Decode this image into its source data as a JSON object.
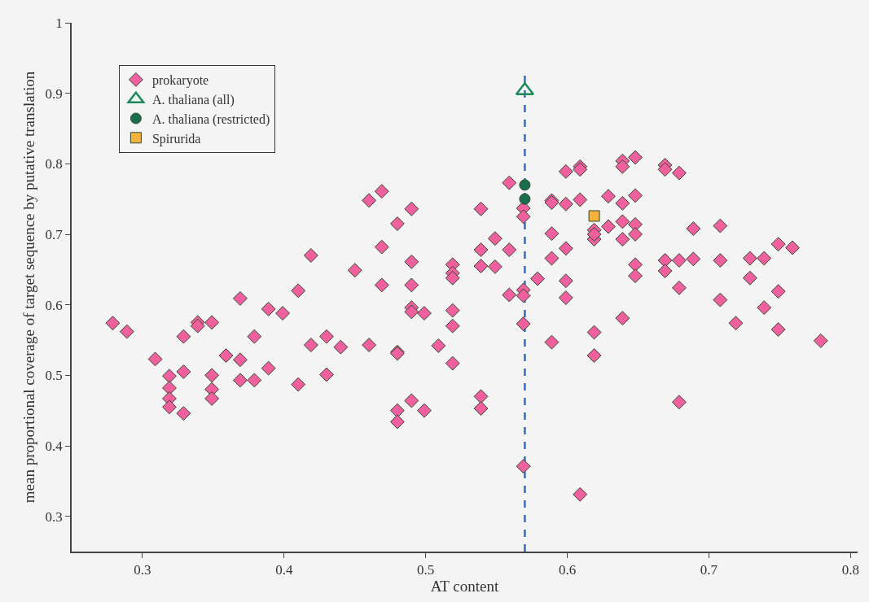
{
  "chart_data": {
    "type": "scatter",
    "xlabel": "AT content",
    "ylabel": "mean proportional coverage of target sequence by putative translation",
    "xlim": [
      0.25,
      0.805
    ],
    "ylim": [
      0.25,
      1.0
    ],
    "xticks": [
      0.3,
      0.4,
      0.5,
      0.6,
      0.7,
      0.8
    ],
    "yticks": [
      0.3,
      0.4,
      0.5,
      0.6,
      0.7,
      0.8,
      0.9,
      1
    ],
    "grid": false,
    "legend": "top left",
    "ref_lines": [
      {
        "axis": "x",
        "value": 0.57,
        "color": "#2e6fc4",
        "line_style": "dashed"
      }
    ],
    "series": [
      {
        "name": "prokaryote",
        "color": "#f0609e",
        "marker": "diamond",
        "x": [
          0.279,
          0.289,
          0.309,
          0.319,
          0.319,
          0.319,
          0.319,
          0.329,
          0.329,
          0.329,
          0.339,
          0.339,
          0.349,
          0.349,
          0.349,
          0.349,
          0.359,
          0.369,
          0.369,
          0.369,
          0.379,
          0.379,
          0.389,
          0.389,
          0.399,
          0.41,
          0.41,
          0.419,
          0.419,
          0.43,
          0.43,
          0.44,
          0.45,
          0.46,
          0.46,
          0.469,
          0.469,
          0.469,
          0.48,
          0.48,
          0.48,
          0.48,
          0.48,
          0.49,
          0.49,
          0.49,
          0.49,
          0.49,
          0.49,
          0.499,
          0.499,
          0.509,
          0.519,
          0.519,
          0.519,
          0.519,
          0.519,
          0.519,
          0.539,
          0.539,
          0.539,
          0.539,
          0.539,
          0.549,
          0.549,
          0.559,
          0.559,
          0.559,
          0.569,
          0.569,
          0.569,
          0.569,
          0.569,
          0.569,
          0.579,
          0.589,
          0.589,
          0.589,
          0.589,
          0.589,
          0.599,
          0.599,
          0.599,
          0.599,
          0.599,
          0.609,
          0.609,
          0.609,
          0.609,
          0.619,
          0.619,
          0.619,
          0.619,
          0.619,
          0.629,
          0.629,
          0.639,
          0.639,
          0.639,
          0.639,
          0.639,
          0.639,
          0.648,
          0.648,
          0.648,
          0.648,
          0.648,
          0.648,
          0.669,
          0.669,
          0.669,
          0.669,
          0.679,
          0.679,
          0.679,
          0.679,
          0.689,
          0.689,
          0.708,
          0.708,
          0.708,
          0.719,
          0.729,
          0.729,
          0.739,
          0.739,
          0.749,
          0.749,
          0.749,
          0.759,
          0.779
        ],
        "values": [
          0.574,
          0.562,
          0.523,
          0.499,
          0.482,
          0.467,
          0.455,
          0.505,
          0.555,
          0.446,
          0.575,
          0.57,
          0.575,
          0.5,
          0.48,
          0.467,
          0.528,
          0.609,
          0.522,
          0.493,
          0.555,
          0.493,
          0.51,
          0.594,
          0.588,
          0.62,
          0.487,
          0.67,
          0.543,
          0.555,
          0.501,
          0.54,
          0.649,
          0.748,
          0.543,
          0.761,
          0.682,
          0.628,
          0.715,
          0.533,
          0.531,
          0.45,
          0.434,
          0.736,
          0.661,
          0.628,
          0.596,
          0.59,
          0.464,
          0.588,
          0.45,
          0.542,
          0.657,
          0.645,
          0.638,
          0.592,
          0.57,
          0.517,
          0.736,
          0.655,
          0.678,
          0.47,
          0.453,
          0.694,
          0.654,
          0.773,
          0.678,
          0.614,
          0.737,
          0.725,
          0.621,
          0.573,
          0.371,
          0.613,
          0.637,
          0.748,
          0.745,
          0.701,
          0.666,
          0.547,
          0.789,
          0.743,
          0.68,
          0.634,
          0.61,
          0.796,
          0.792,
          0.749,
          0.331,
          0.706,
          0.693,
          0.528,
          0.561,
          0.7,
          0.711,
          0.754,
          0.804,
          0.796,
          0.744,
          0.718,
          0.693,
          0.581,
          0.809,
          0.755,
          0.714,
          0.7,
          0.657,
          0.641,
          0.798,
          0.792,
          0.663,
          0.648,
          0.787,
          0.663,
          0.624,
          0.462,
          0.708,
          0.665,
          0.712,
          0.663,
          0.607,
          0.574,
          0.666,
          0.638,
          0.666,
          0.596,
          0.686,
          0.619,
          0.565,
          0.681,
          0.549
        ]
      },
      {
        "name": "A. thaliana (all)",
        "color": "#1a8a5a",
        "marker": "triangle",
        "x": [
          0.57
        ],
        "values": [
          0.904
        ]
      },
      {
        "name": "A. thaliana (restricted)",
        "color": "#1a6e4e",
        "marker": "circle",
        "x": [
          0.57,
          0.57
        ],
        "values": [
          0.77,
          0.75
        ]
      },
      {
        "name": "Spirurida",
        "color": "#f4b13c",
        "marker": "square",
        "x": [
          0.619
        ],
        "values": [
          0.726
        ]
      }
    ]
  }
}
